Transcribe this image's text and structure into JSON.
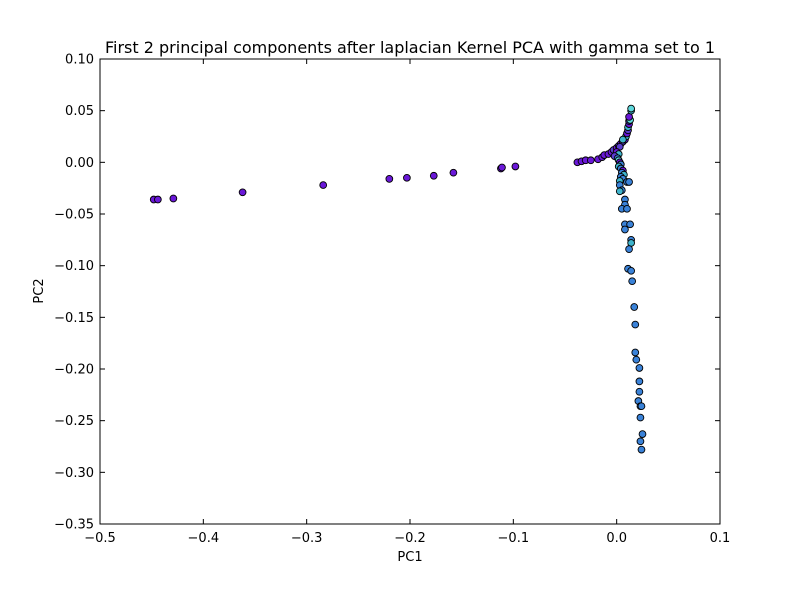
{
  "chart_data": {
    "type": "scatter",
    "title": "First 2 principal components after laplacian Kernel PCA with gamma set to 1",
    "xlabel": "PC1",
    "ylabel": "PC2",
    "xlim": [
      -0.5,
      0.1
    ],
    "ylim": [
      -0.35,
      0.1
    ],
    "xticks": [
      -0.5,
      -0.4,
      -0.3,
      -0.2,
      -0.1,
      0.0,
      0.1
    ],
    "xtick_labels": [
      "−0.5",
      "−0.4",
      "−0.3",
      "−0.2",
      "−0.1",
      "0.0",
      "0.1"
    ],
    "yticks": [
      -0.35,
      -0.3,
      -0.25,
      -0.2,
      -0.15,
      -0.1,
      -0.05,
      0.0,
      0.05,
      0.1
    ],
    "ytick_labels": [
      "−0.35",
      "−0.30",
      "−0.25",
      "−0.20",
      "−0.15",
      "−0.10",
      "−0.05",
      "0.00",
      "0.05",
      "0.10"
    ],
    "grid": false,
    "colors": {
      "purple": "#6a18d8",
      "violet": "#5a3ed0",
      "blue": "#3a82d8",
      "teal": "#3fb4cc",
      "cyan": "#5ed8dc"
    },
    "points": [
      {
        "x": -0.448,
        "y": -0.036,
        "c": "purple"
      },
      {
        "x": -0.444,
        "y": -0.036,
        "c": "purple"
      },
      {
        "x": -0.429,
        "y": -0.035,
        "c": "purple"
      },
      {
        "x": -0.362,
        "y": -0.029,
        "c": "purple"
      },
      {
        "x": -0.284,
        "y": -0.022,
        "c": "purple"
      },
      {
        "x": -0.22,
        "y": -0.016,
        "c": "purple"
      },
      {
        "x": -0.203,
        "y": -0.015,
        "c": "purple"
      },
      {
        "x": -0.177,
        "y": -0.013,
        "c": "purple"
      },
      {
        "x": -0.158,
        "y": -0.01,
        "c": "purple"
      },
      {
        "x": -0.112,
        "y": -0.006,
        "c": "purple"
      },
      {
        "x": -0.111,
        "y": -0.005,
        "c": "purple"
      },
      {
        "x": -0.098,
        "y": -0.004,
        "c": "purple"
      },
      {
        "x": -0.038,
        "y": 0.0,
        "c": "purple"
      },
      {
        "x": -0.034,
        "y": 0.001,
        "c": "purple"
      },
      {
        "x": -0.03,
        "y": 0.002,
        "c": "purple"
      },
      {
        "x": -0.025,
        "y": 0.002,
        "c": "purple"
      },
      {
        "x": -0.018,
        "y": 0.003,
        "c": "purple"
      },
      {
        "x": -0.014,
        "y": 0.005,
        "c": "purple"
      },
      {
        "x": -0.012,
        "y": 0.007,
        "c": "purple"
      },
      {
        "x": -0.008,
        "y": 0.008,
        "c": "purple"
      },
      {
        "x": -0.005,
        "y": 0.01,
        "c": "purple"
      },
      {
        "x": -0.003,
        "y": 0.012,
        "c": "violet"
      },
      {
        "x": 0.0,
        "y": 0.014,
        "c": "purple"
      },
      {
        "x": 0.002,
        "y": 0.016,
        "c": "violet"
      },
      {
        "x": 0.004,
        "y": 0.018,
        "c": "purple"
      },
      {
        "x": 0.006,
        "y": 0.02,
        "c": "violet"
      },
      {
        "x": 0.008,
        "y": 0.022,
        "c": "purple"
      },
      {
        "x": 0.009,
        "y": 0.025,
        "c": "teal"
      },
      {
        "x": 0.01,
        "y": 0.028,
        "c": "purple"
      },
      {
        "x": 0.011,
        "y": 0.031,
        "c": "violet"
      },
      {
        "x": 0.011,
        "y": 0.034,
        "c": "teal"
      },
      {
        "x": 0.012,
        "y": 0.037,
        "c": "purple"
      },
      {
        "x": 0.012,
        "y": 0.04,
        "c": "violet"
      },
      {
        "x": 0.013,
        "y": 0.041,
        "c": "cyan"
      },
      {
        "x": 0.012,
        "y": 0.044,
        "c": "purple"
      },
      {
        "x": 0.014,
        "y": 0.05,
        "c": "teal"
      },
      {
        "x": 0.014,
        "y": 0.052,
        "c": "cyan"
      },
      {
        "x": 0.006,
        "y": 0.022,
        "c": "teal"
      },
      {
        "x": 0.003,
        "y": 0.015,
        "c": "violet"
      },
      {
        "x": 0.0,
        "y": 0.01,
        "c": "purple"
      },
      {
        "x": 0.002,
        "y": 0.008,
        "c": "teal"
      },
      {
        "x": -0.002,
        "y": 0.006,
        "c": "violet"
      },
      {
        "x": 0.001,
        "y": 0.004,
        "c": "blue"
      },
      {
        "x": 0.002,
        "y": 0.002,
        "c": "cyan"
      },
      {
        "x": 0.003,
        "y": 0.0,
        "c": "purple"
      },
      {
        "x": 0.004,
        "y": -0.002,
        "c": "blue"
      },
      {
        "x": 0.002,
        "y": -0.004,
        "c": "teal"
      },
      {
        "x": 0.004,
        "y": -0.006,
        "c": "blue"
      },
      {
        "x": 0.006,
        "y": -0.008,
        "c": "purple"
      },
      {
        "x": 0.005,
        "y": -0.01,
        "c": "blue"
      },
      {
        "x": 0.007,
        "y": -0.012,
        "c": "teal"
      },
      {
        "x": 0.004,
        "y": -0.014,
        "c": "blue"
      },
      {
        "x": 0.006,
        "y": -0.016,
        "c": "blue"
      },
      {
        "x": 0.003,
        "y": -0.018,
        "c": "teal"
      },
      {
        "x": 0.01,
        "y": -0.019,
        "c": "blue"
      },
      {
        "x": 0.012,
        "y": -0.019,
        "c": "blue"
      },
      {
        "x": 0.003,
        "y": -0.022,
        "c": "blue"
      },
      {
        "x": 0.005,
        "y": -0.027,
        "c": "blue"
      },
      {
        "x": 0.003,
        "y": -0.028,
        "c": "teal"
      },
      {
        "x": 0.008,
        "y": -0.036,
        "c": "blue"
      },
      {
        "x": 0.008,
        "y": -0.041,
        "c": "blue"
      },
      {
        "x": 0.005,
        "y": -0.045,
        "c": "blue"
      },
      {
        "x": 0.01,
        "y": -0.045,
        "c": "blue"
      },
      {
        "x": 0.008,
        "y": -0.06,
        "c": "blue"
      },
      {
        "x": 0.013,
        "y": -0.06,
        "c": "blue"
      },
      {
        "x": 0.008,
        "y": -0.065,
        "c": "blue"
      },
      {
        "x": 0.014,
        "y": -0.075,
        "c": "blue"
      },
      {
        "x": 0.014,
        "y": -0.078,
        "c": "teal"
      },
      {
        "x": 0.012,
        "y": -0.084,
        "c": "blue"
      },
      {
        "x": 0.011,
        "y": -0.103,
        "c": "blue"
      },
      {
        "x": 0.014,
        "y": -0.105,
        "c": "blue"
      },
      {
        "x": 0.015,
        "y": -0.115,
        "c": "blue"
      },
      {
        "x": 0.017,
        "y": -0.14,
        "c": "blue"
      },
      {
        "x": 0.018,
        "y": -0.157,
        "c": "blue"
      },
      {
        "x": 0.018,
        "y": -0.184,
        "c": "blue"
      },
      {
        "x": 0.019,
        "y": -0.191,
        "c": "blue"
      },
      {
        "x": 0.022,
        "y": -0.199,
        "c": "blue"
      },
      {
        "x": 0.022,
        "y": -0.212,
        "c": "blue"
      },
      {
        "x": 0.022,
        "y": -0.222,
        "c": "blue"
      },
      {
        "x": 0.021,
        "y": -0.231,
        "c": "blue"
      },
      {
        "x": 0.023,
        "y": -0.236,
        "c": "blue"
      },
      {
        "x": 0.024,
        "y": -0.236,
        "c": "blue"
      },
      {
        "x": 0.023,
        "y": -0.247,
        "c": "blue"
      },
      {
        "x": 0.025,
        "y": -0.263,
        "c": "blue"
      },
      {
        "x": 0.023,
        "y": -0.27,
        "c": "blue"
      },
      {
        "x": 0.024,
        "y": -0.278,
        "c": "blue"
      }
    ]
  }
}
